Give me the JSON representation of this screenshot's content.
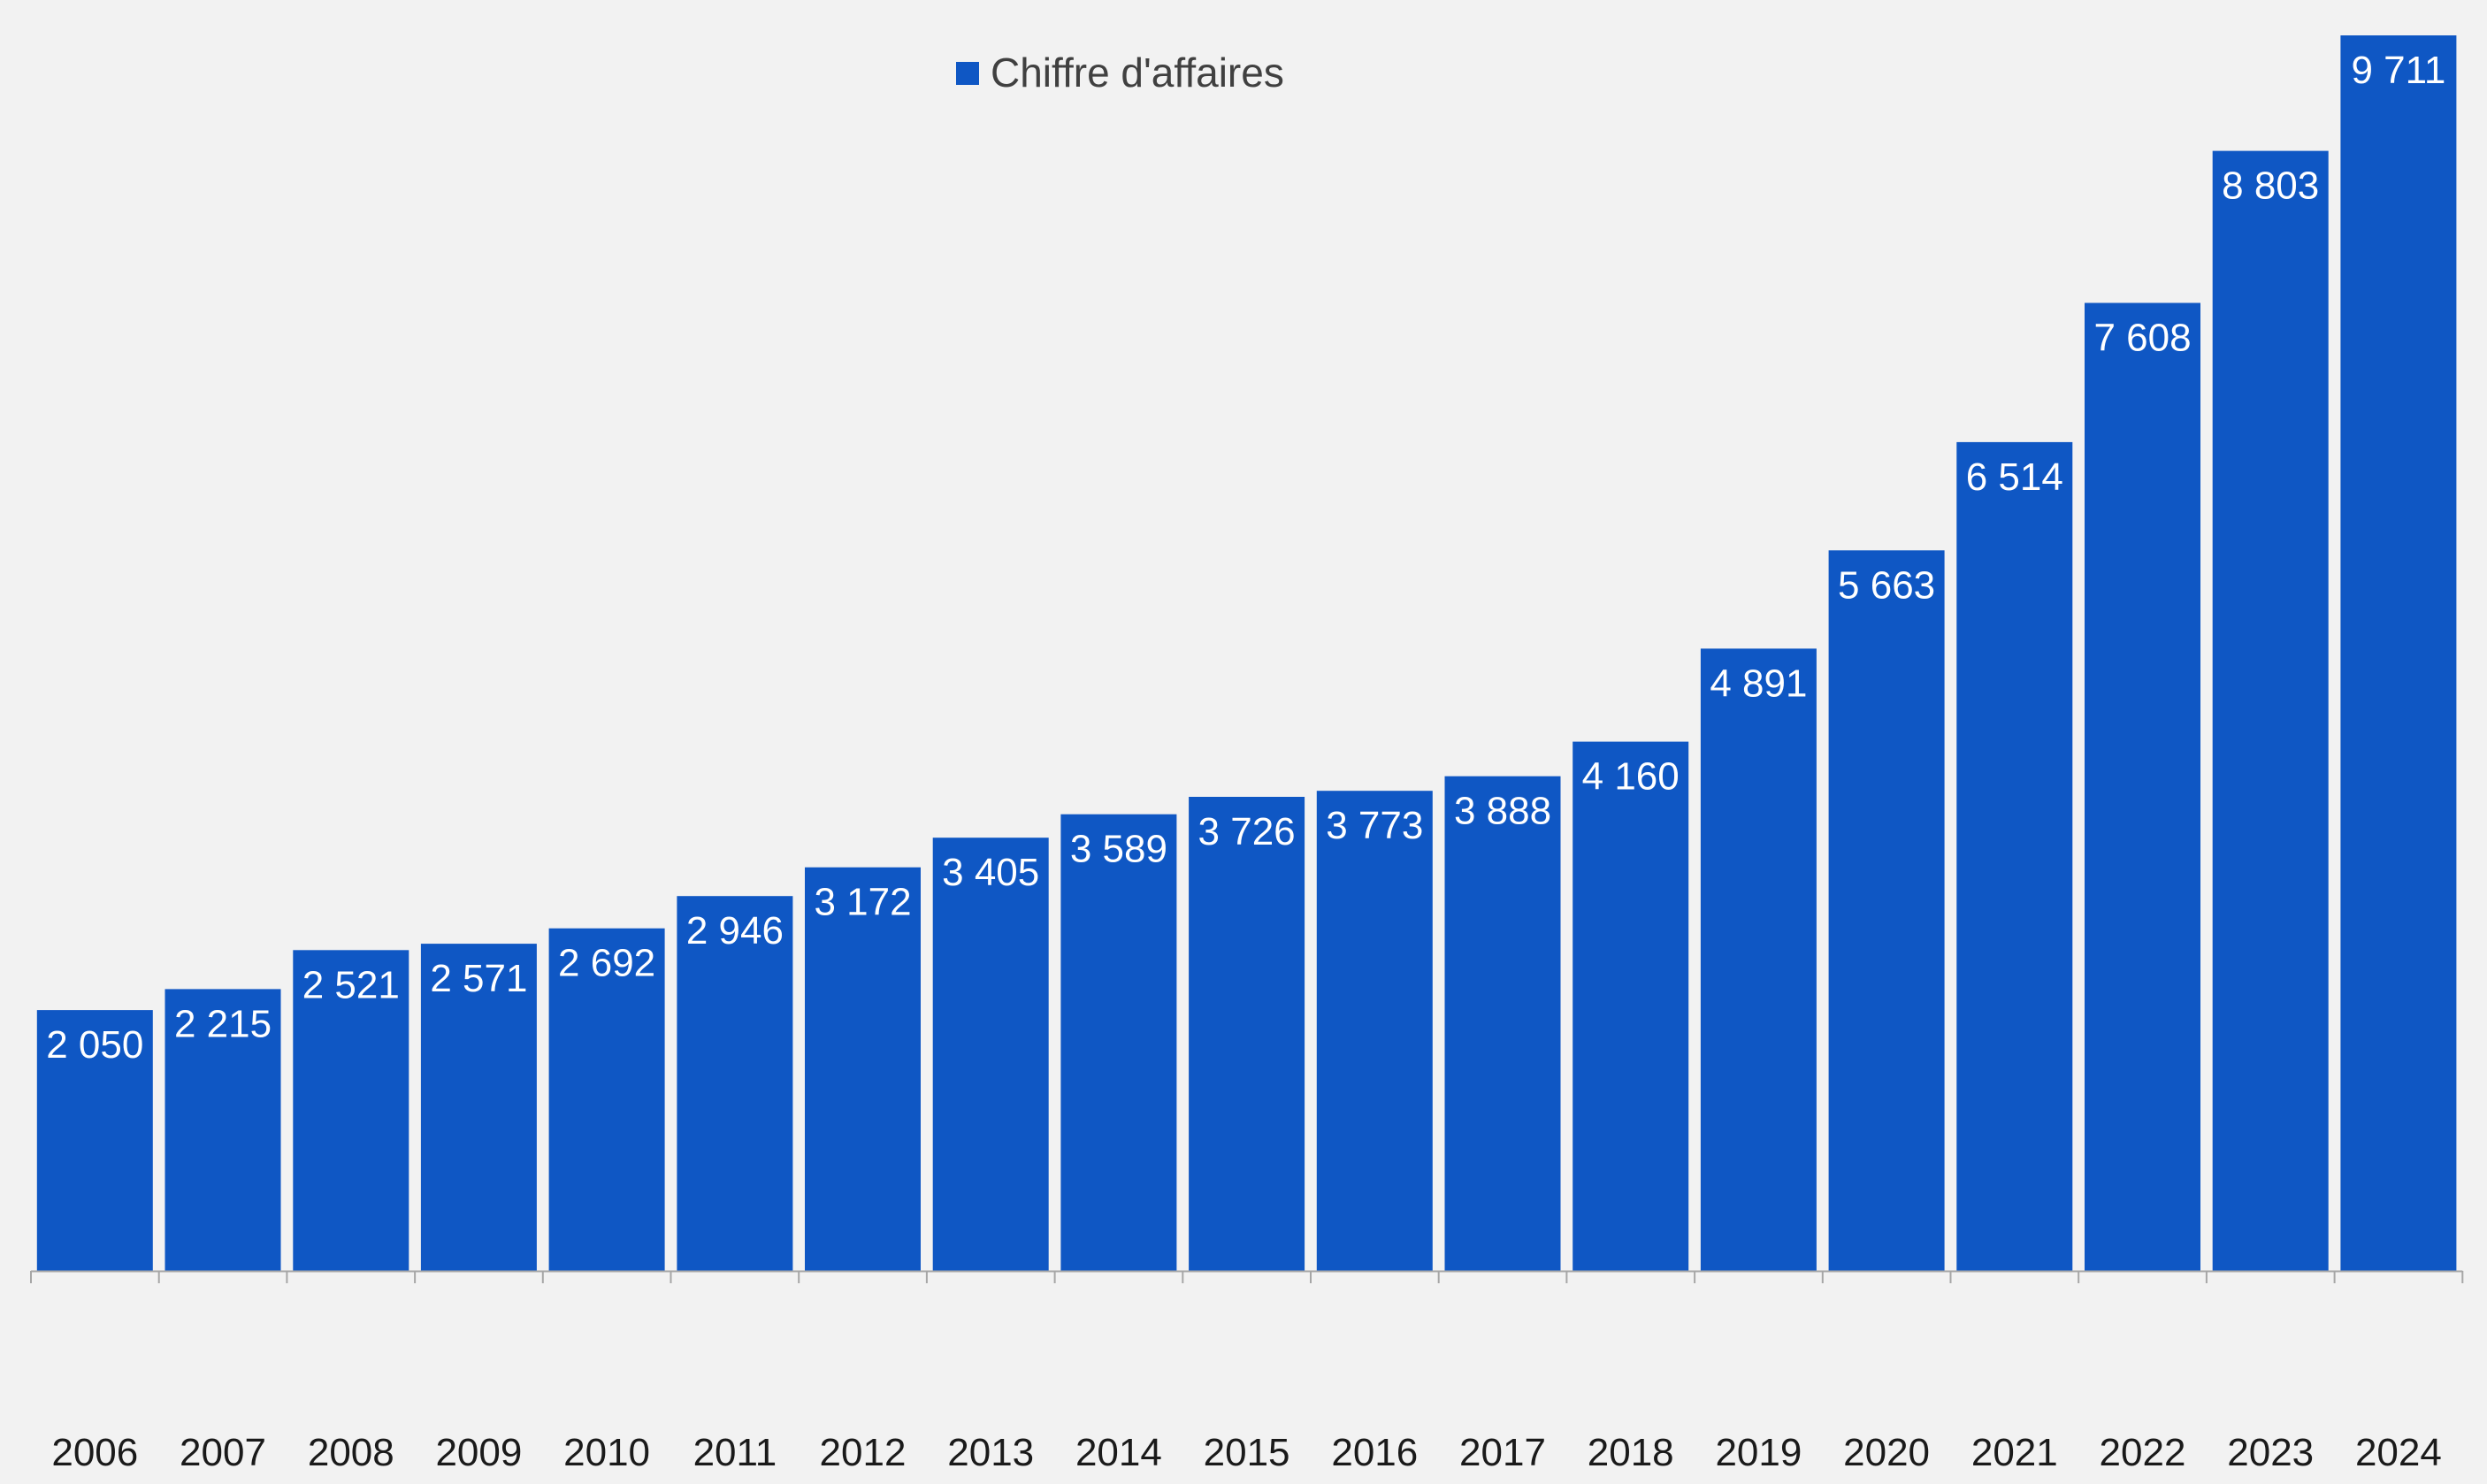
{
  "chart_data": {
    "type": "bar",
    "title": "",
    "xlabel": "",
    "ylabel": "",
    "categories": [
      "2006",
      "2007",
      "2008",
      "2009",
      "2010",
      "2011",
      "2012",
      "2013",
      "2014",
      "2015",
      "2016",
      "2017",
      "2018",
      "2019",
      "2020",
      "2021",
      "2022",
      "2023",
      "2024"
    ],
    "series": [
      {
        "name": "Chiffre d'affaires",
        "values": [
          2050,
          2215,
          2521,
          2571,
          2692,
          2946,
          3172,
          3405,
          3589,
          3726,
          3773,
          3888,
          4160,
          4891,
          5663,
          6514,
          7608,
          8803,
          9711
        ],
        "labels": [
          "2 050",
          "2 215",
          "2 521",
          "2 571",
          "2 692",
          "2 946",
          "3 172",
          "3 405",
          "3 589",
          "3 726",
          "3 773",
          "3 888",
          "4 160",
          "4 891",
          "5 663",
          "6 514",
          "7 608",
          "8 803",
          "9 711"
        ],
        "color": "#0f57c4"
      }
    ],
    "ylim": [
      0,
      9711
    ],
    "grid": false,
    "legend": "top-center",
    "background": "#f2f2f2",
    "axis_color": "#a6a6a6"
  }
}
